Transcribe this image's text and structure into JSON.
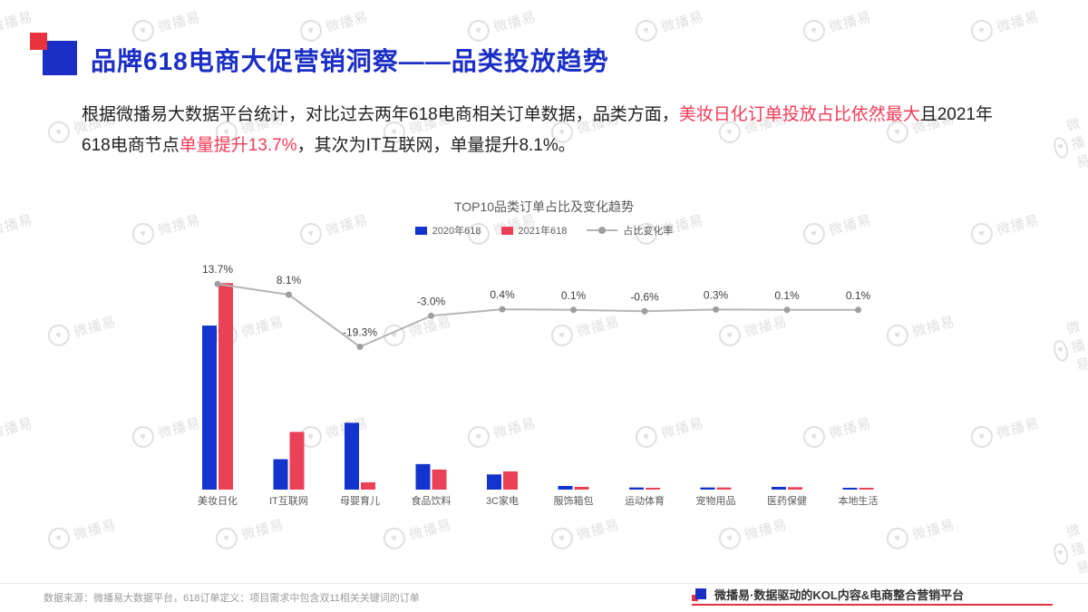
{
  "slide": {
    "header": {
      "title": "品牌618电商大促营销洞察——品类投放趋势"
    },
    "paragraph": {
      "s1": "根据微播易大数据平台统计，对比过去两年618电商相关订单数据，品类方面，",
      "s2": "美妆日化订单投放占比依然最大",
      "s3": "且2021年618电商节点",
      "s4": "单量提升13.7%",
      "s5": "，其次为IT互联网，单量提升8.1%。"
    },
    "footer": {
      "left": "数据来源：微播易大数据平台，618订单定义：项目需求中包含双11相关关键词的订单",
      "right": "微播易·数据驱动的KOL内容&电商整合营销平台"
    },
    "watermark_text": "微播易"
  },
  "colors": {
    "title_blue": "#1b2fc6",
    "highlight_red": "#f53b57",
    "bar_blue": "#1233cc",
    "bar_red": "#ea4156",
    "line_gray": "#b5b5b5",
    "accent_red": "#e8323c"
  },
  "chart_data": {
    "type": "bar",
    "title": "TOP10品类订单占比及变化趋势",
    "categories": [
      "美妆日化",
      "IT互联网",
      "母婴育儿",
      "食品饮料",
      "3C家电",
      "服饰箱包",
      "运动体育",
      "宠物用品",
      "医药保健",
      "本地生活"
    ],
    "series": [
      {
        "name": "2020年618",
        "color": "#1233cc",
        "values": [
          27,
          5,
          11,
          4.2,
          2.5,
          0.6,
          0.35,
          0.35,
          0.45,
          0.3
        ]
      },
      {
        "name": "2021年618",
        "color": "#ea4156",
        "values": [
          34,
          9.5,
          1.2,
          3.3,
          3.0,
          0.45,
          0.3,
          0.35,
          0.4,
          0.3
        ]
      }
    ],
    "line_series": {
      "name": "占比变化率",
      "color": "#b5b5b5",
      "values": [
        13.7,
        8.1,
        -19.3,
        -3.0,
        0.4,
        0.1,
        -0.6,
        0.3,
        0.1,
        0.1
      ],
      "labels": [
        "13.7%",
        "8.1%",
        "-19.3%",
        "-3.0%",
        "0.4%",
        "0.1%",
        "-0.6%",
        "0.3%",
        "0.1%",
        "0.1%"
      ]
    },
    "legend": [
      "2020年618",
      "2021年618",
      "占比变化率"
    ],
    "ylabel": "",
    "unit": "%"
  }
}
